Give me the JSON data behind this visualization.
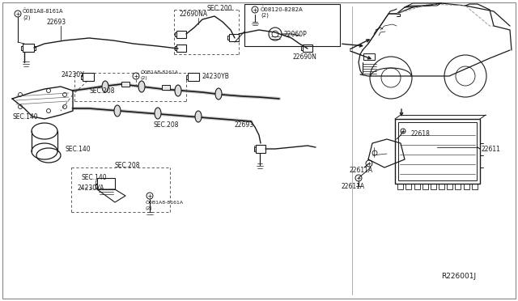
{
  "bg_color": "#ffffff",
  "line_color": "#1a1a1a",
  "text_color": "#1a1a1a",
  "fig_width": 6.4,
  "fig_height": 3.72,
  "dpi": 100,
  "labels": {
    "bolt_top_left": "B1A8-8161A\n(2)",
    "label_22693_top": "22693",
    "label_22690NA": "22690NA",
    "label_SEC200": "SEC.200",
    "label_22690N": "22690N",
    "label_24230Y": "24230Y",
    "label_24230YB": "24230YB",
    "label_bolt_mid": "B1A8-8161A\n(2)",
    "label_SEC208_1": "SEC.208",
    "label_SEC208_2": "SEC.208",
    "label_SEC140_1": "SEC.140",
    "label_SEC140_2": "SEC.140",
    "label_22693_bot": "22693",
    "label_24230YA": "24230YA",
    "label_bolt_bot": "B1A8-8161A\n(2)",
    "label_bolt_top_right": "08120-8282A\n(2)",
    "label_22060P": "22060P",
    "label_22611A": "22611A",
    "label_22618": "22618",
    "label_22611": "22611",
    "label_ref": "R226001J"
  }
}
